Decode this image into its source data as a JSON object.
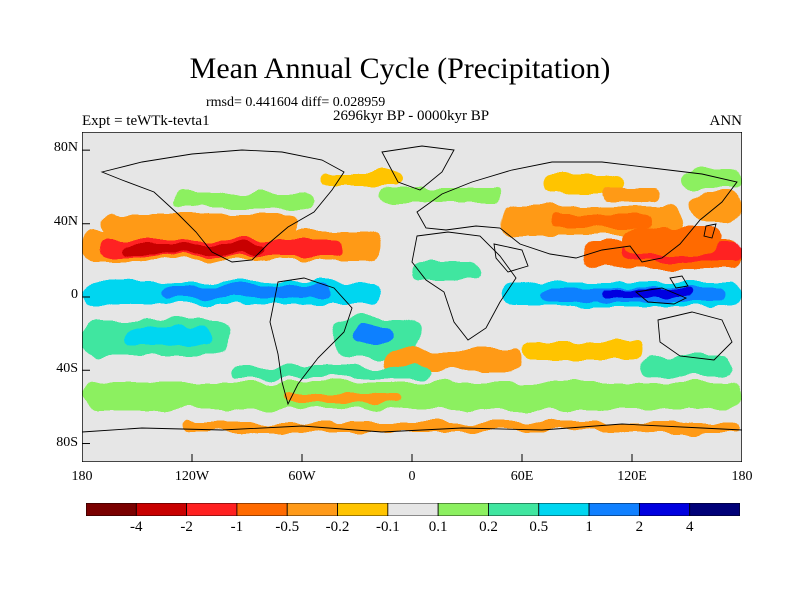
{
  "title": "Mean Annual Cycle (Precipitation)",
  "stats": "rmsd= 0.441604 diff= 0.028959",
  "period": "2696kyr BP - 0000kyr BP",
  "experiment": "Expt = teWTk-tevta1",
  "season": "ANN",
  "axes": {
    "y_ticks": [
      "80N",
      "40N",
      "0",
      "40S",
      "80S"
    ],
    "x_ticks": [
      "180",
      "120W",
      "60W",
      "0",
      "60E",
      "120E",
      "180"
    ]
  },
  "colorbar": {
    "labels": [
      "-4",
      "-2",
      "-1",
      "-0.5",
      "-0.2",
      "-0.1",
      "0.1",
      "0.2",
      "0.5",
      "1",
      "2",
      "4"
    ],
    "colors": [
      "#7a0000",
      "#c80000",
      "#ff2020",
      "#ff6a00",
      "#ff9a18",
      "#ffc400",
      "#e6e6e6",
      "#8cf060",
      "#40e6a0",
      "#00d6f0",
      "#1080ff",
      "#0000e0",
      "#000078"
    ]
  },
  "chart_data": {
    "type": "heatmap",
    "title": "Mean Annual Cycle (Precipitation)",
    "subtitle": "2696kyr BP - 0000kyr BP",
    "variable": "precipitation difference",
    "lon_range": [
      -180,
      180
    ],
    "lat_range": [
      -90,
      90
    ],
    "levels": [
      -4,
      -2,
      -1,
      -0.5,
      -0.2,
      -0.1,
      0.1,
      0.2,
      0.5,
      1,
      2,
      4
    ],
    "rmsd": 0.441604,
    "diff": 0.028959
  }
}
